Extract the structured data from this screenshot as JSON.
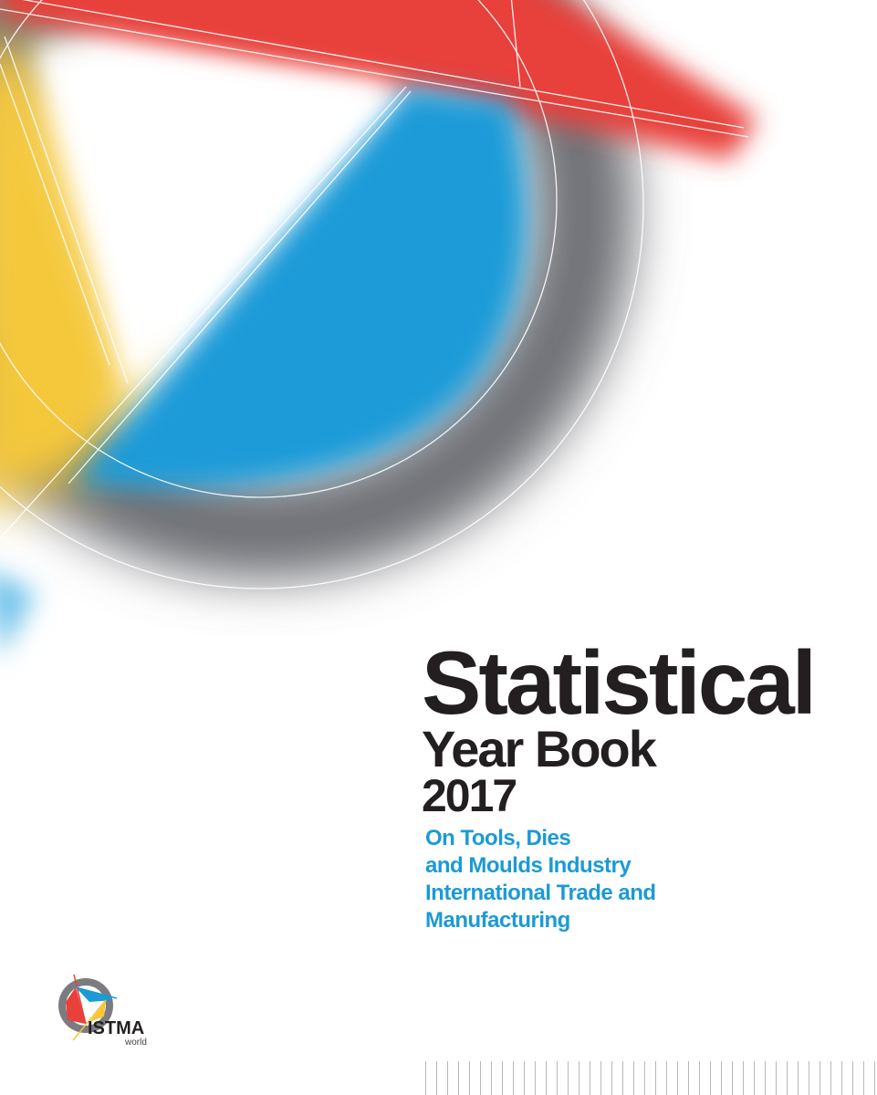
{
  "cover": {
    "title_line1": "Statistical",
    "title_line2": "Year Book",
    "year": "2017",
    "subtitle_lines": [
      "On Tools, Dies",
      "and Moulds Industry",
      "International Trade and",
      "Manufacturing"
    ]
  },
  "logo": {
    "name": "ISTMA",
    "tagline": "world"
  },
  "colors": {
    "accent_blue": "#1b9ad6",
    "red": "#e8403a",
    "yellow": "#f7c93c",
    "gray": "#7a7c80",
    "text": "#231f20"
  }
}
